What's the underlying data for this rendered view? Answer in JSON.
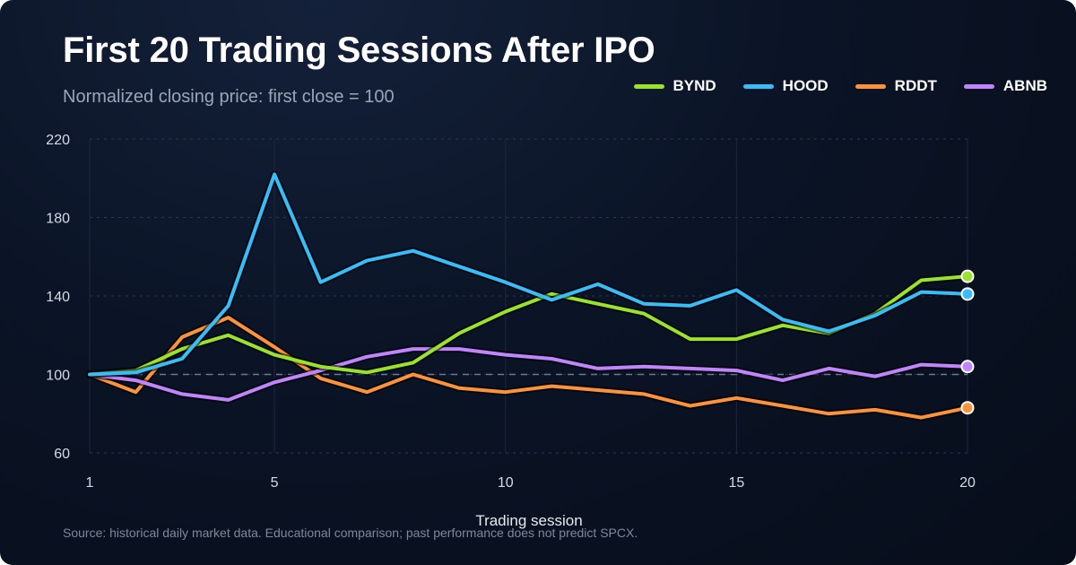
{
  "header": {
    "title": "First 20 Trading Sessions After IPO",
    "subtitle": "Normalized closing price: first close = 100"
  },
  "footer": {
    "source": "Source: historical daily market data. Educational comparison; past performance does not predict SPCX."
  },
  "chart_data": {
    "type": "line",
    "title": "First 20 Trading Sessions After IPO",
    "subtitle": "Normalized closing price: first close = 100",
    "xlabel": "Trading session",
    "ylabel": "",
    "x": [
      1,
      2,
      3,
      4,
      5,
      6,
      7,
      8,
      9,
      10,
      11,
      12,
      13,
      14,
      15,
      16,
      17,
      18,
      19,
      20
    ],
    "xticks": [
      1,
      5,
      10,
      15,
      20
    ],
    "yticks": [
      60,
      100,
      140,
      180,
      220
    ],
    "xlim": [
      1,
      20
    ],
    "ylim": [
      60,
      220
    ],
    "reference_line": 100,
    "grid": true,
    "legend_position": "top-right",
    "series": [
      {
        "name": "BYND",
        "color": "#9be22d",
        "values": [
          100,
          102,
          113,
          120,
          110,
          104,
          101,
          106,
          121,
          132,
          141,
          136,
          131,
          118,
          118,
          125,
          121,
          131,
          148,
          150
        ]
      },
      {
        "name": "HOOD",
        "color": "#38bdf8",
        "values": [
          100,
          101,
          108,
          135,
          202,
          147,
          158,
          163,
          155,
          147,
          138,
          146,
          136,
          135,
          143,
          128,
          122,
          130,
          142,
          141
        ]
      },
      {
        "name": "RDDT",
        "color": "#fb923c",
        "values": [
          100,
          91,
          119,
          129,
          114,
          98,
          91,
          100,
          93,
          91,
          94,
          92,
          90,
          84,
          88,
          84,
          80,
          82,
          78,
          83
        ]
      },
      {
        "name": "ABNB",
        "color": "#c084fc",
        "values": [
          100,
          97,
          90,
          87,
          96,
          102,
          109,
          113,
          113,
          110,
          108,
          103,
          104,
          103,
          102,
          97,
          103,
          99,
          105,
          104
        ]
      }
    ]
  }
}
